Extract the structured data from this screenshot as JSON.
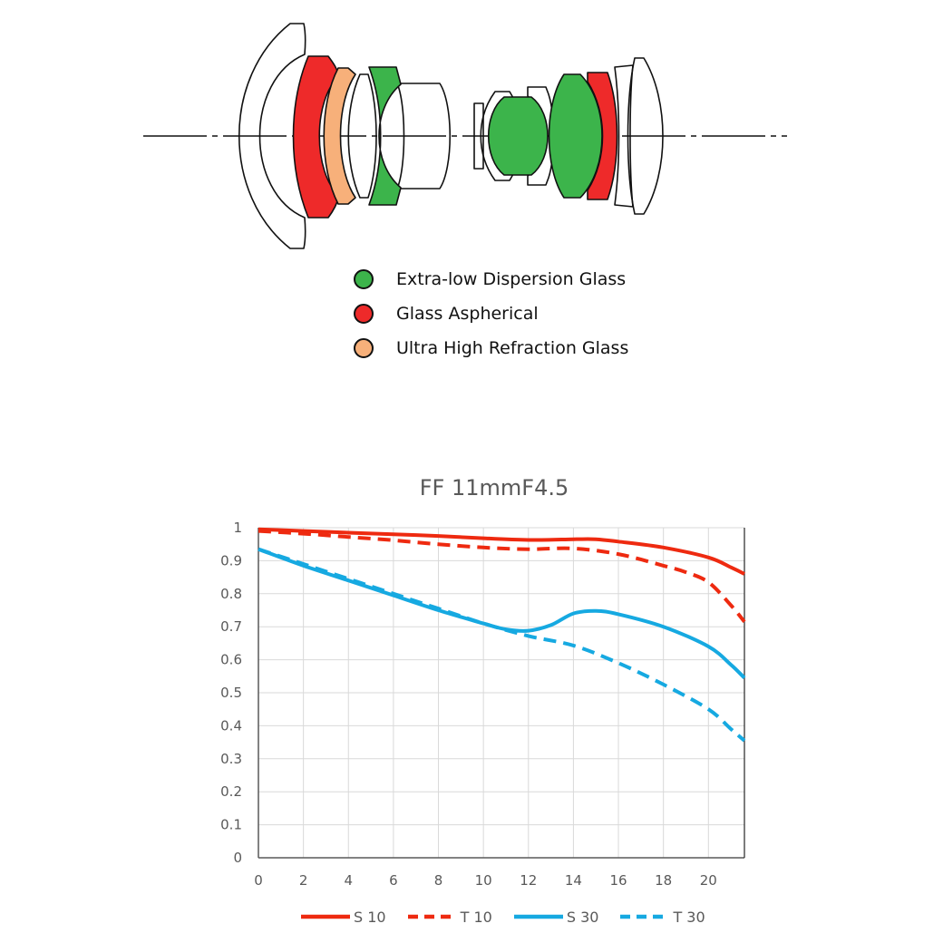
{
  "legend": {
    "items": [
      {
        "label": "Extra-low Dispersion Glass",
        "color": "#3cb44b"
      },
      {
        "label": "Glass Aspherical",
        "color": "#ee2a2a"
      },
      {
        "label": "Ultra High Refraction Glass",
        "color": "#f7b07a"
      }
    ]
  },
  "chart_data": {
    "type": "line",
    "title": "FF 11mmF4.5",
    "xlabel": "",
    "ylabel": "",
    "xlim": [
      0,
      21.6
    ],
    "ylim": [
      0,
      1
    ],
    "xticks": [
      0,
      2,
      4,
      6,
      8,
      10,
      12,
      14,
      16,
      18,
      20
    ],
    "yticks": [
      0,
      0.1,
      0.2,
      0.3,
      0.4,
      0.5,
      0.6,
      0.7,
      0.8,
      0.9,
      1
    ],
    "ytick_labels": [
      "0",
      "0.1",
      "0.2",
      "0.3",
      "0.4",
      "0.5",
      "0.6",
      "0.7",
      "0.8",
      "0.9",
      "1"
    ],
    "grid": true,
    "legend_position": "bottom",
    "series": [
      {
        "name": "S 10",
        "color": "#ee2a10",
        "dashed": false,
        "x": [
          0,
          2,
          4,
          6,
          8,
          10,
          12,
          14,
          15,
          16,
          18,
          20,
          21,
          21.6
        ],
        "y": [
          0.995,
          0.99,
          0.985,
          0.98,
          0.975,
          0.968,
          0.963,
          0.965,
          0.965,
          0.958,
          0.94,
          0.91,
          0.88,
          0.86
        ]
      },
      {
        "name": "T 10",
        "color": "#ee2a10",
        "dashed": true,
        "x": [
          0,
          2,
          4,
          6,
          8,
          10,
          12,
          14,
          16,
          18,
          19,
          20,
          21,
          21.6
        ],
        "y": [
          0.99,
          0.982,
          0.972,
          0.962,
          0.95,
          0.94,
          0.935,
          0.937,
          0.92,
          0.885,
          0.865,
          0.835,
          0.765,
          0.715
        ]
      },
      {
        "name": "S 30",
        "color": "#16a9e1",
        "dashed": false,
        "x": [
          0,
          2,
          4,
          6,
          8,
          10,
          11,
          12,
          13,
          14,
          15,
          16,
          18,
          20,
          21,
          21.6
        ],
        "y": [
          0.935,
          0.885,
          0.84,
          0.795,
          0.75,
          0.71,
          0.692,
          0.688,
          0.705,
          0.74,
          0.748,
          0.738,
          0.7,
          0.64,
          0.585,
          0.545
        ]
      },
      {
        "name": "T 30",
        "color": "#16a9e1",
        "dashed": true,
        "x": [
          0,
          2,
          4,
          6,
          8,
          10,
          12,
          14,
          16,
          18,
          20,
          21,
          21.6
        ],
        "y": [
          0.935,
          0.89,
          0.845,
          0.8,
          0.755,
          0.71,
          0.672,
          0.643,
          0.59,
          0.525,
          0.45,
          0.39,
          0.355
        ]
      }
    ]
  }
}
